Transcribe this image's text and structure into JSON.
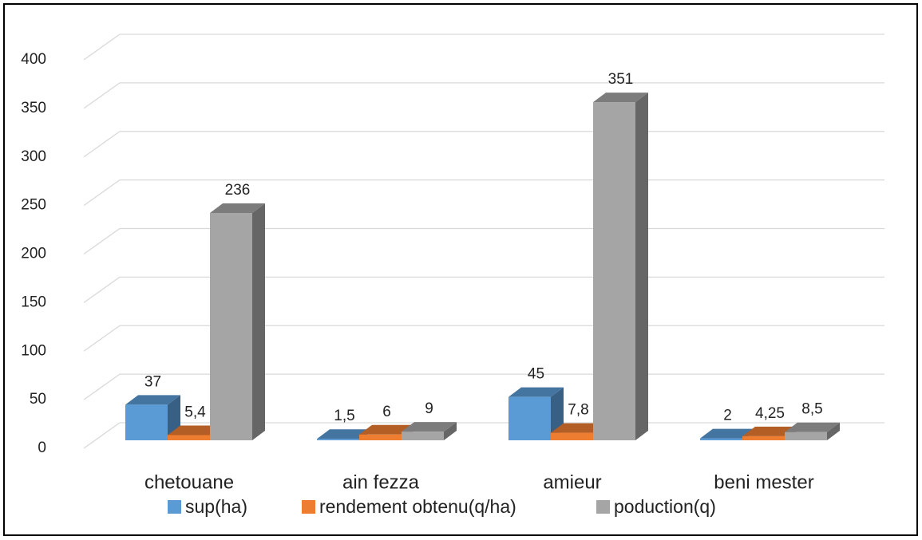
{
  "chart_data": {
    "type": "bar3d",
    "categories": [
      "chetouane",
      "ain fezza",
      "amieur",
      "beni mester"
    ],
    "series": [
      {
        "name": "sup(ha)",
        "color": "#5b9bd5",
        "values": [
          37,
          1.5,
          45,
          2
        ],
        "value_labels": [
          "37",
          "1,5",
          "45",
          "2"
        ]
      },
      {
        "name": "rendement obtenu(q/ha)",
        "color": "#ed7d31",
        "values": [
          5.4,
          6,
          7.8,
          4.25
        ],
        "value_labels": [
          "5,4",
          "6",
          "7,8",
          "4,25"
        ]
      },
      {
        "name": "poduction(q)",
        "color": "#a5a5a5",
        "values": [
          236,
          9,
          351,
          8.5
        ],
        "value_labels": [
          "236",
          "9",
          "351",
          "8,5"
        ]
      }
    ],
    "ylim": [
      0,
      400
    ],
    "yticks": [
      0,
      50,
      100,
      150,
      200,
      250,
      300,
      350,
      400
    ],
    "grid": true,
    "legend": "bottom"
  }
}
